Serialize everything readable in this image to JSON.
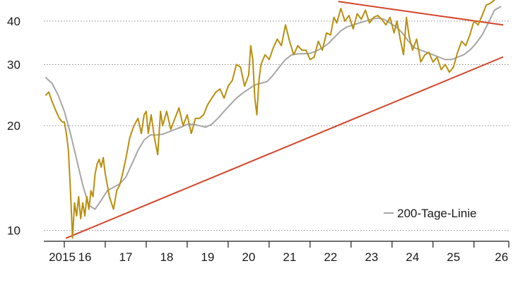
{
  "chart_data": {
    "type": "line",
    "title": "",
    "xlabel": "",
    "ylabel": "",
    "y_scale": "log",
    "ylim": [
      9.3,
      46
    ],
    "xlim": [
      2015.0,
      2026.35
    ],
    "y_ticks": [
      {
        "value": 10,
        "label": "10"
      },
      {
        "value": 20,
        "label": "20"
      },
      {
        "value": 30,
        "label": "30"
      },
      {
        "value": 40,
        "label": "40"
      }
    ],
    "x_ticks": [
      {
        "value": 2015,
        "label": "2015"
      },
      {
        "value": 2016,
        "label": "16"
      },
      {
        "value": 2017,
        "label": "17"
      },
      {
        "value": 2018,
        "label": "18"
      },
      {
        "value": 2019,
        "label": "19"
      },
      {
        "value": 2020,
        "label": "20"
      },
      {
        "value": 2021,
        "label": "21"
      },
      {
        "value": 2022,
        "label": "22"
      },
      {
        "value": 2023,
        "label": "23"
      },
      {
        "value": 2024,
        "label": "24"
      },
      {
        "value": 2025,
        "label": "25"
      },
      {
        "value": 2026,
        "label": "26"
      }
    ],
    "grid": "horizontal dotted",
    "legend": {
      "placement": "bottom-right",
      "entries": [
        "200-Tage-Linie"
      ]
    },
    "series": [
      {
        "role": "price",
        "color": "#b8900f",
        "x": [
          2015.05,
          2015.12,
          2015.2,
          2015.3,
          2015.38,
          2015.45,
          2015.5,
          2015.55,
          2015.6,
          2015.65,
          2015.7,
          2015.75,
          2015.8,
          2015.85,
          2015.9,
          2015.95,
          2016.0,
          2016.05,
          2016.1,
          2016.15,
          2016.2,
          2016.25,
          2016.3,
          2016.35,
          2016.4,
          2016.45,
          2016.5,
          2016.55,
          2016.6,
          2016.7,
          2016.78,
          2016.85,
          2016.92,
          2017.0,
          2017.1,
          2017.2,
          2017.3,
          2017.38,
          2017.45,
          2017.5,
          2017.55,
          2017.62,
          2017.7,
          2017.78,
          2017.85,
          2017.9,
          2018.0,
          2018.1,
          2018.2,
          2018.3,
          2018.4,
          2018.5,
          2018.6,
          2018.7,
          2018.8,
          2018.9,
          2019.0,
          2019.1,
          2019.2,
          2019.3,
          2019.4,
          2019.5,
          2019.6,
          2019.7,
          2019.8,
          2019.9,
          2020.0,
          2020.05,
          2020.1,
          2020.15,
          2020.2,
          2020.25,
          2020.3,
          2020.4,
          2020.5,
          2020.6,
          2020.7,
          2020.8,
          2020.9,
          2021.0,
          2021.1,
          2021.2,
          2021.3,
          2021.4,
          2021.5,
          2021.6,
          2021.7,
          2021.8,
          2021.9,
          2022.0,
          2022.08,
          2022.15,
          2022.25,
          2022.35,
          2022.45,
          2022.55,
          2022.65,
          2022.75,
          2022.85,
          2022.95,
          2023.05,
          2023.15,
          2023.25,
          2023.35,
          2023.45,
          2023.55,
          2023.62,
          2023.7,
          2023.78,
          2023.85,
          2023.92,
          2024.0,
          2024.1,
          2024.2,
          2024.3,
          2024.4,
          2024.5,
          2024.6,
          2024.7,
          2024.8,
          2024.9,
          2025.0,
          2025.1,
          2025.2,
          2025.3,
          2025.4,
          2025.5,
          2025.6,
          2025.7,
          2025.8,
          2025.9,
          2026.0
        ],
        "values": [
          24.5,
          25.0,
          23.5,
          22.0,
          21.0,
          20.5,
          20.5,
          19.0,
          17.0,
          13.0,
          9.5,
          12.0,
          11.0,
          12.5,
          10.8,
          12.0,
          11.0,
          12.5,
          11.5,
          13.0,
          12.5,
          14.5,
          15.5,
          16.0,
          15.2,
          16.2,
          14.5,
          13.5,
          12.5,
          11.5,
          13.0,
          13.5,
          14.5,
          16.0,
          18.5,
          20.0,
          21.0,
          19.0,
          21.5,
          22.0,
          19.0,
          21.5,
          18.5,
          16.5,
          22.0,
          20.0,
          22.0,
          19.5,
          21.0,
          22.5,
          20.0,
          21.5,
          19.0,
          21.0,
          21.0,
          21.5,
          23.0,
          24.0,
          25.0,
          25.5,
          24.0,
          26.0,
          27.0,
          30.0,
          29.5,
          26.0,
          28.0,
          34.0,
          31.0,
          24.0,
          21.5,
          27.0,
          30.0,
          32.0,
          31.0,
          33.5,
          35.5,
          34.0,
          39.0,
          35.0,
          32.0,
          34.0,
          33.0,
          33.0,
          31.0,
          31.5,
          35.0,
          33.0,
          37.0,
          36.5,
          41.0,
          39.5,
          43.5,
          40.0,
          41.5,
          38.0,
          42.0,
          40.5,
          43.0,
          39.5,
          41.0,
          41.5,
          40.5,
          39.0,
          41.0,
          37.0,
          40.0,
          35.5,
          32.0,
          41.0,
          36.0,
          33.0,
          35.5,
          30.5,
          32.0,
          32.5,
          30.5,
          31.5,
          29.0,
          30.0,
          28.5,
          29.5,
          32.5,
          35.0,
          34.0,
          36.5,
          40.0,
          39.0,
          41.5,
          44.5,
          45.0,
          46.0
        ]
      },
      {
        "role": "moving-average",
        "name": "200-Tage-Linie",
        "color": "#a6a6a6",
        "x": [
          2015.05,
          2015.2,
          2015.35,
          2015.5,
          2015.65,
          2015.8,
          2015.95,
          2016.1,
          2016.25,
          2016.4,
          2016.55,
          2016.7,
          2016.85,
          2017.0,
          2017.15,
          2017.3,
          2017.45,
          2017.6,
          2017.75,
          2017.9,
          2018.05,
          2018.2,
          2018.35,
          2018.5,
          2018.65,
          2018.8,
          2018.95,
          2019.1,
          2019.25,
          2019.4,
          2019.55,
          2019.7,
          2019.85,
          2020.0,
          2020.15,
          2020.3,
          2020.45,
          2020.6,
          2020.75,
          2020.9,
          2021.05,
          2021.2,
          2021.35,
          2021.5,
          2021.65,
          2021.8,
          2021.95,
          2022.1,
          2022.25,
          2022.4,
          2022.55,
          2022.7,
          2022.85,
          2023.0,
          2023.15,
          2023.3,
          2023.45,
          2023.6,
          2023.75,
          2023.9,
          2024.05,
          2024.2,
          2024.35,
          2024.5,
          2024.65,
          2024.8,
          2024.95,
          2025.1,
          2025.25,
          2025.4,
          2025.55,
          2025.7,
          2025.85,
          2026.0,
          2026.15
        ],
        "values": [
          27.5,
          26.5,
          24.5,
          22.0,
          19.0,
          16.0,
          13.5,
          11.8,
          11.5,
          12.2,
          13.0,
          13.3,
          13.6,
          14.2,
          15.5,
          17.0,
          18.2,
          18.8,
          18.8,
          18.9,
          19.2,
          19.5,
          19.8,
          20.2,
          20.2,
          20.0,
          19.8,
          20.2,
          21.0,
          22.0,
          23.0,
          24.0,
          24.8,
          25.5,
          26.2,
          26.5,
          26.8,
          28.0,
          29.5,
          31.0,
          32.0,
          32.2,
          32.2,
          32.3,
          32.8,
          33.5,
          34.5,
          36.0,
          37.5,
          38.5,
          39.0,
          39.5,
          40.0,
          40.5,
          40.8,
          40.5,
          39.5,
          38.5,
          37.0,
          35.0,
          33.5,
          33.0,
          32.5,
          32.0,
          31.5,
          31.0,
          31.0,
          31.5,
          32.0,
          33.0,
          34.5,
          36.5,
          39.5,
          43.0,
          44.0
        ]
      },
      {
        "role": "trend-line",
        "color": "#d2462a",
        "x": [
          2015.55,
          2026.2
        ],
        "values": [
          9.5,
          31.5
        ]
      },
      {
        "role": "trend-line",
        "color": "#d2462a",
        "x": [
          2022.2,
          2026.2
        ],
        "values": [
          45.5,
          39.0
        ]
      }
    ]
  }
}
